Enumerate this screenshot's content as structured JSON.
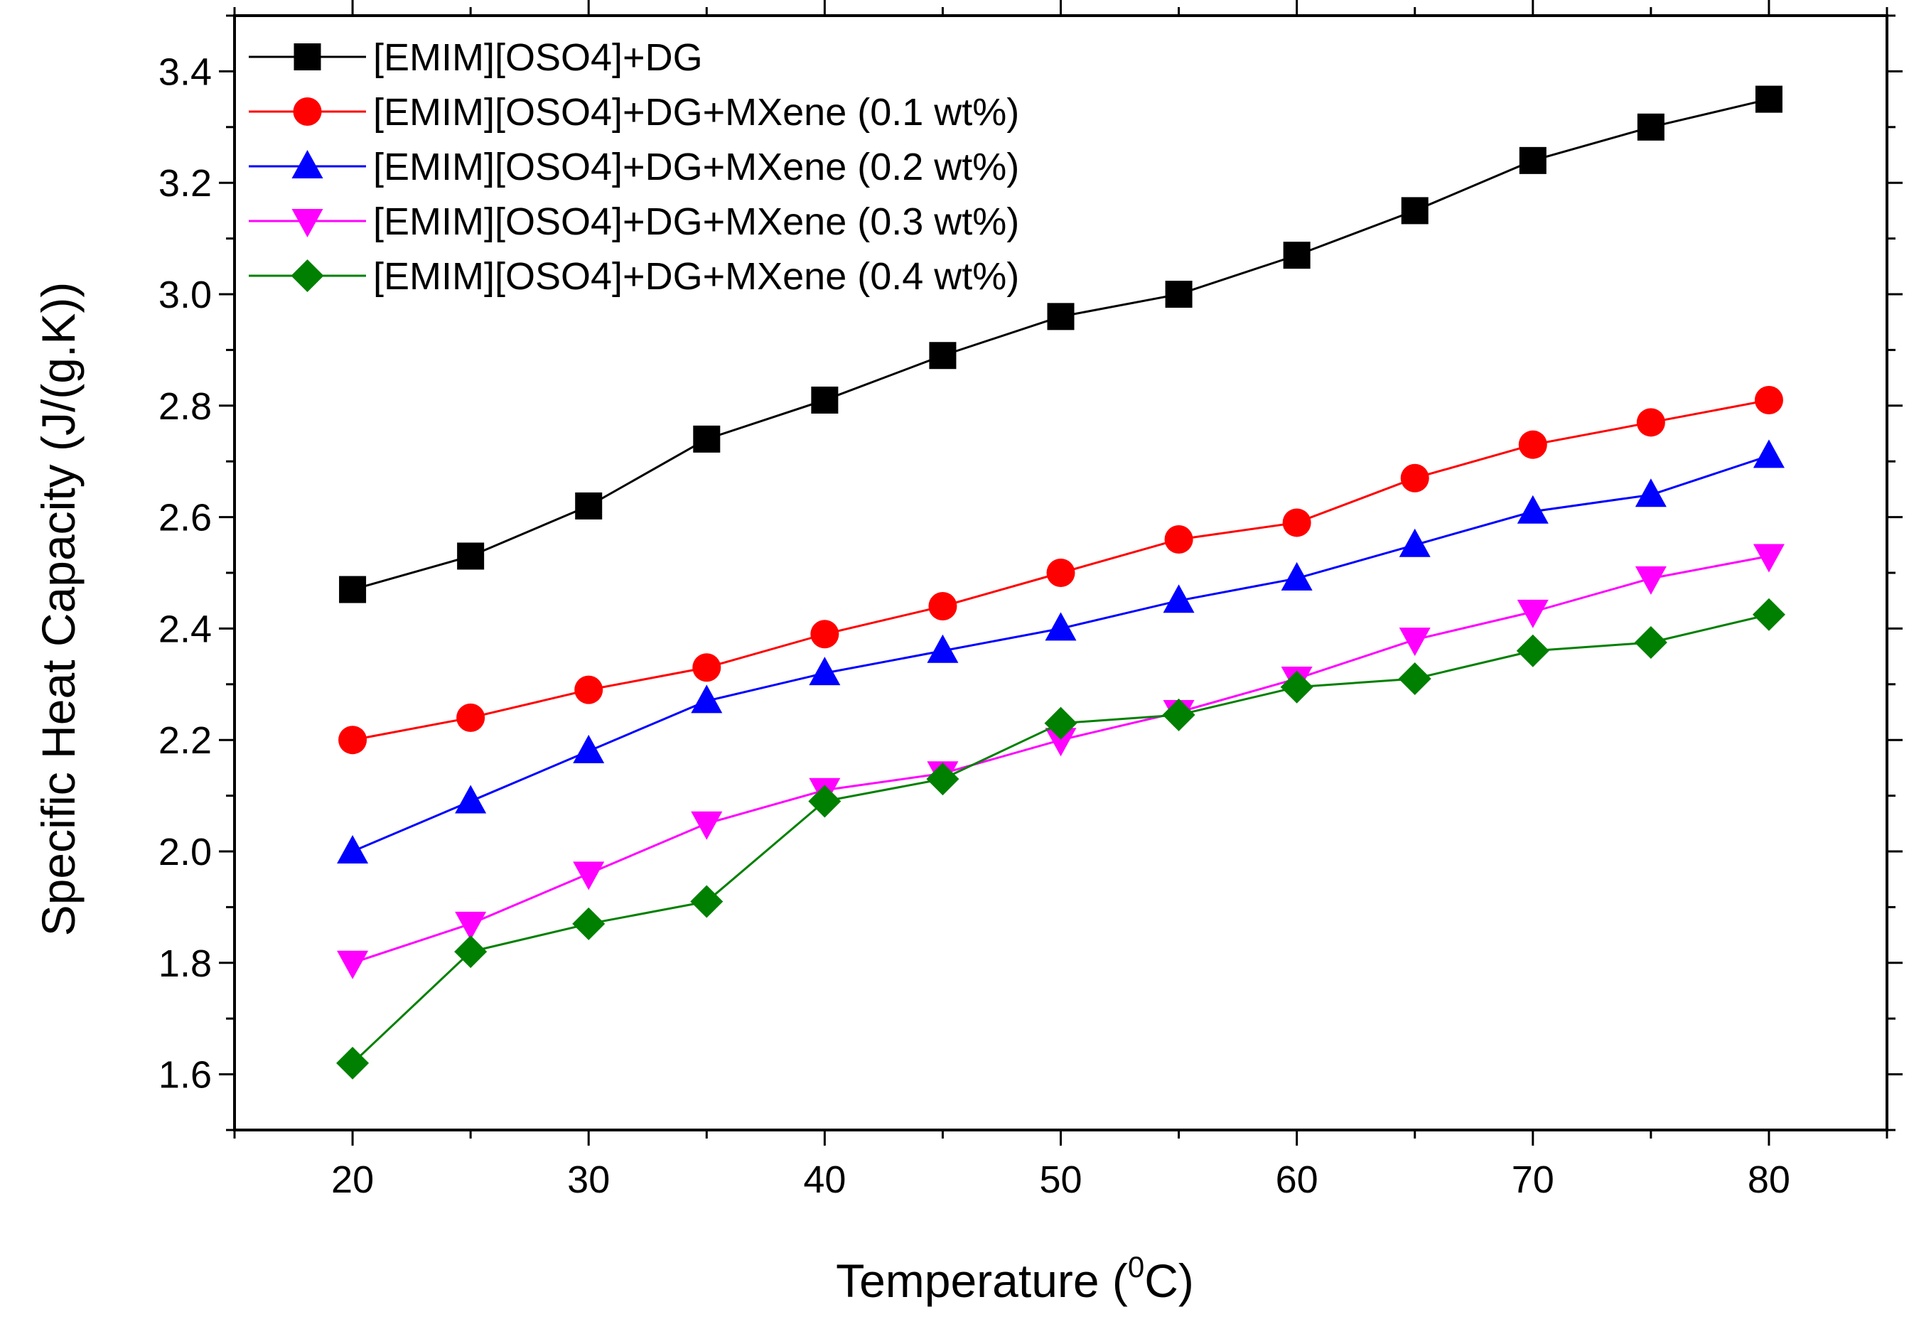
{
  "chart_data": {
    "type": "line",
    "title": "",
    "xlabel": "Temperature (",
    "xlabel_sup": "0",
    "xlabel_end": "C)",
    "ylabel": "Specific Heat Capacity (J/(g.K))",
    "xlim": [
      15,
      85
    ],
    "ylim": [
      1.5,
      3.5
    ],
    "xticks": [
      20,
      30,
      40,
      50,
      60,
      70,
      80
    ],
    "yticks": [
      1.6,
      1.8,
      2.0,
      2.2,
      2.4,
      2.6,
      2.8,
      3.0,
      3.2,
      3.4
    ],
    "ytick_labels": [
      "1.6",
      "1.8",
      "2.0",
      "2.2",
      "2.4",
      "2.6",
      "2.8",
      "3.0",
      "3.2",
      "3.4"
    ],
    "x": [
      20,
      25,
      30,
      35,
      40,
      45,
      50,
      55,
      60,
      65,
      70,
      75,
      80
    ],
    "legend_position": "top-left",
    "series": [
      {
        "name": "[EMIM][OSO4]+DG",
        "color": "#000000",
        "marker": "square",
        "values": [
          2.47,
          2.53,
          2.62,
          2.74,
          2.81,
          2.89,
          2.96,
          3.0,
          3.07,
          3.15,
          3.24,
          3.3,
          3.35
        ]
      },
      {
        "name": "[EMIM][OSO4]+DG+MXene (0.1 wt%)",
        "color": "#ff0000",
        "marker": "circle",
        "values": [
          2.2,
          2.24,
          2.29,
          2.33,
          2.39,
          2.44,
          2.5,
          2.56,
          2.59,
          2.67,
          2.73,
          2.77,
          2.81
        ]
      },
      {
        "name": "[EMIM][OSO4]+DG+MXene (0.2 wt%)",
        "color": "#0000ff",
        "marker": "triangle-up",
        "values": [
          2.0,
          2.09,
          2.18,
          2.27,
          2.32,
          2.36,
          2.4,
          2.45,
          2.49,
          2.55,
          2.61,
          2.64,
          2.71
        ]
      },
      {
        "name": "[EMIM][OSO4]+DG+MXene (0.3 wt%)",
        "color": "#ff00ff",
        "marker": "triangle-down",
        "values": [
          1.8,
          1.87,
          1.96,
          2.05,
          2.11,
          2.14,
          2.2,
          2.25,
          2.31,
          2.38,
          2.43,
          2.49,
          2.53
        ]
      },
      {
        "name": "[EMIM][OSO4]+DG+MXene (0.4 wt%)",
        "color": "#008000",
        "marker": "diamond",
        "values": [
          1.62,
          1.82,
          1.87,
          1.91,
          2.09,
          2.13,
          2.23,
          2.245,
          2.295,
          2.31,
          2.36,
          2.375,
          2.425
        ]
      }
    ]
  }
}
